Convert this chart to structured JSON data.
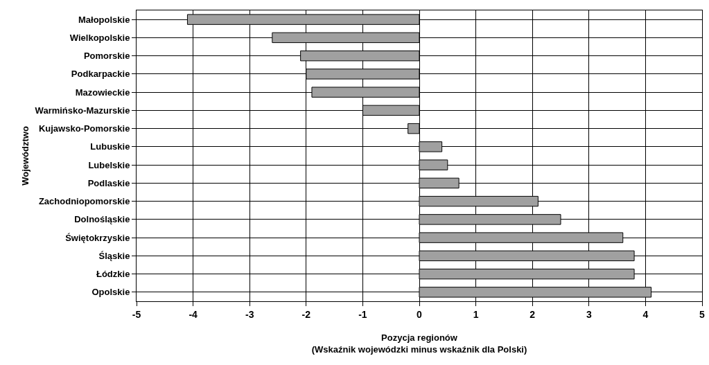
{
  "chart_data": {
    "type": "bar",
    "orientation": "horizontal",
    "xlabel": "Pozycja regionów\n(Wskaźnik wojewódzki minus wskaźnik dla Polski)",
    "ylabel": "Województwo",
    "categories": [
      "Małopolskie",
      "Wielkopolskie",
      "Pomorskie",
      "Podkarpackie",
      "Mazowieckie",
      "Warmińsko-Mazurskie",
      "Kujawsko-Pomorskie",
      "Lubuskie",
      "Lubelskie",
      "Podlaskie",
      "Zachodniopomorskie",
      "Dolnośląskie",
      "Świętokrzyskie",
      "Śląskie",
      "Łódzkie",
      "Opolskie"
    ],
    "values": [
      -4.1,
      -2.6,
      -2.1,
      -2.0,
      -1.9,
      -1.0,
      -0.2,
      0.4,
      0.5,
      0.7,
      2.1,
      2.5,
      3.6,
      3.8,
      3.8,
      4.1
    ],
    "color": "#a0a0a0",
    "xlim": [
      -5,
      5
    ],
    "xticks": [
      -5,
      -4,
      -3,
      -2,
      -1,
      0,
      1,
      2,
      3,
      4,
      5
    ],
    "grid": true
  }
}
